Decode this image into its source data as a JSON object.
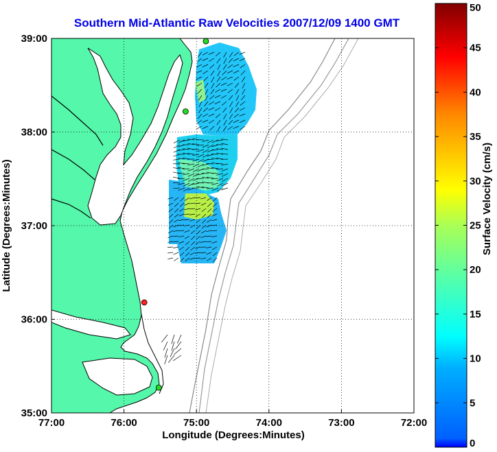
{
  "chart_data": {
    "type": "heatmap",
    "title": "Southern Mid-Atlantic Raw Velocities 2007/12/09 1400 GMT",
    "xlabel": "Longitude (Degrees:Minutes)",
    "ylabel": "Latitude (Degrees:Minutes)",
    "xlim": [
      -77,
      -72
    ],
    "ylim": [
      35,
      39
    ],
    "x_ticks": [
      -77,
      -76,
      -75,
      -74,
      -73,
      -72
    ],
    "x_tick_labels": [
      "77:00",
      "76:00",
      "75:00",
      "74:00",
      "73:00",
      "72:00"
    ],
    "y_ticks": [
      35,
      36,
      37,
      38,
      39
    ],
    "y_tick_labels": [
      "35:00",
      "36:00",
      "37:00",
      "38:00",
      "39:00"
    ],
    "grid": "dotted",
    "colorbar": {
      "label": "Surface Velocity (cm/s)",
      "range": [
        0,
        50
      ],
      "ticks": [
        0,
        5,
        10,
        15,
        20,
        25,
        30,
        35,
        40,
        45,
        50
      ],
      "colormap": "jet"
    },
    "land_color": "#55f7aa",
    "stations": [
      {
        "lon": -74.87,
        "lat": 38.97,
        "status": "green"
      },
      {
        "lon": -75.15,
        "lat": 38.22,
        "status": "green"
      },
      {
        "lon": -75.72,
        "lat": 36.18,
        "status": "red"
      },
      {
        "lon": -75.52,
        "lat": 35.27,
        "status": "green"
      }
    ],
    "velocity_regions": [
      {
        "name": "northern patch",
        "lat_range": [
          38.0,
          38.95
        ],
        "lon_range": [
          -75.05,
          -74.35
        ],
        "speed_cm_s": 9
      },
      {
        "name": "central patch",
        "lat_range": [
          37.4,
          37.95
        ],
        "lon_range": [
          -75.25,
          -74.5
        ],
        "speed_cm_s": 13
      },
      {
        "name": "southern patch",
        "lat_range": [
          36.6,
          37.3
        ],
        "lon_range": [
          -75.4,
          -74.8
        ],
        "speed_cm_s": 8
      },
      {
        "name": "strong band",
        "lat_range": [
          37.05,
          37.3
        ],
        "lon_range": [
          -75.4,
          -75.0
        ],
        "speed_cm_s": 22
      }
    ]
  }
}
